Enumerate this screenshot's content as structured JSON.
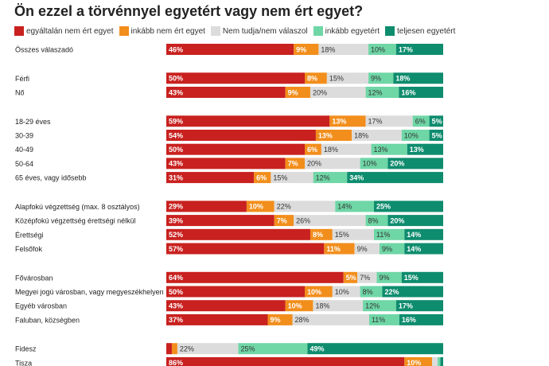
{
  "chart_data": {
    "type": "bar",
    "orientation": "horizontal",
    "stacked": true,
    "title": "Ön ezzel a törvénnyel egyetért vagy nem ért egyet?",
    "legend_position": "top-left",
    "xlim": [
      0,
      100
    ],
    "grid": false,
    "series": [
      {
        "name": "egyáltalán nem ért egyet",
        "color": "#c8211f"
      },
      {
        "name": "inkább nem ért egyet",
        "color": "#f28e1c"
      },
      {
        "name": "Nem tudja/nem válaszol",
        "color": "#dcdcdc"
      },
      {
        "name": "inkább egyetért",
        "color": "#6fd6a6"
      },
      {
        "name": "teljesen egyetért",
        "color": "#0e8c6e"
      }
    ],
    "groups": [
      {
        "rows": [
          {
            "label": "Összes válaszadó",
            "values": [
              46,
              9,
              18,
              10,
              17
            ]
          }
        ]
      },
      {
        "rows": [
          {
            "label": "Férfi",
            "values": [
              50,
              8,
              15,
              9,
              18
            ]
          },
          {
            "label": "Nő",
            "values": [
              43,
              9,
              20,
              12,
              16
            ]
          }
        ]
      },
      {
        "rows": [
          {
            "label": "18-29 éves",
            "values": [
              59,
              13,
              17,
              6,
              5
            ]
          },
          {
            "label": "30-39",
            "values": [
              54,
              13,
              18,
              10,
              5
            ]
          },
          {
            "label": "40-49",
            "values": [
              50,
              6,
              18,
              13,
              13
            ]
          },
          {
            "label": "50-64",
            "values": [
              43,
              7,
              20,
              10,
              20
            ]
          },
          {
            "label": "65 éves, vagy idősebb",
            "values": [
              31,
              6,
              15,
              12,
              34
            ]
          }
        ]
      },
      {
        "rows": [
          {
            "label": "Alapfokú végzettség (max. 8 osztályos)",
            "values": [
              29,
              10,
              22,
              14,
              25
            ]
          },
          {
            "label": "Középfokú végzettség érettségi nélkül",
            "values": [
              39,
              7,
              26,
              8,
              20
            ]
          },
          {
            "label": "Érettségi",
            "values": [
              52,
              8,
              15,
              11,
              14
            ]
          },
          {
            "label": "Felsőfok",
            "values": [
              57,
              11,
              9,
              9,
              14
            ]
          }
        ]
      },
      {
        "rows": [
          {
            "label": "Fővárosban",
            "values": [
              64,
              5,
              7,
              9,
              15
            ]
          },
          {
            "label": "Megyei jogú városban, vagy megyeszékhelyen",
            "values": [
              50,
              10,
              10,
              8,
              22
            ]
          },
          {
            "label": "Egyéb városban",
            "values": [
              43,
              10,
              18,
              12,
              17
            ]
          },
          {
            "label": "Faluban, községben",
            "values": [
              37,
              9,
              28,
              11,
              16
            ]
          }
        ]
      },
      {
        "rows": [
          {
            "label": "Fidesz",
            "values": [
              2,
              2,
              22,
              25,
              49
            ]
          },
          {
            "label": "Tisza",
            "values": [
              86,
              10,
              2,
              1,
              1
            ]
          }
        ]
      }
    ]
  }
}
